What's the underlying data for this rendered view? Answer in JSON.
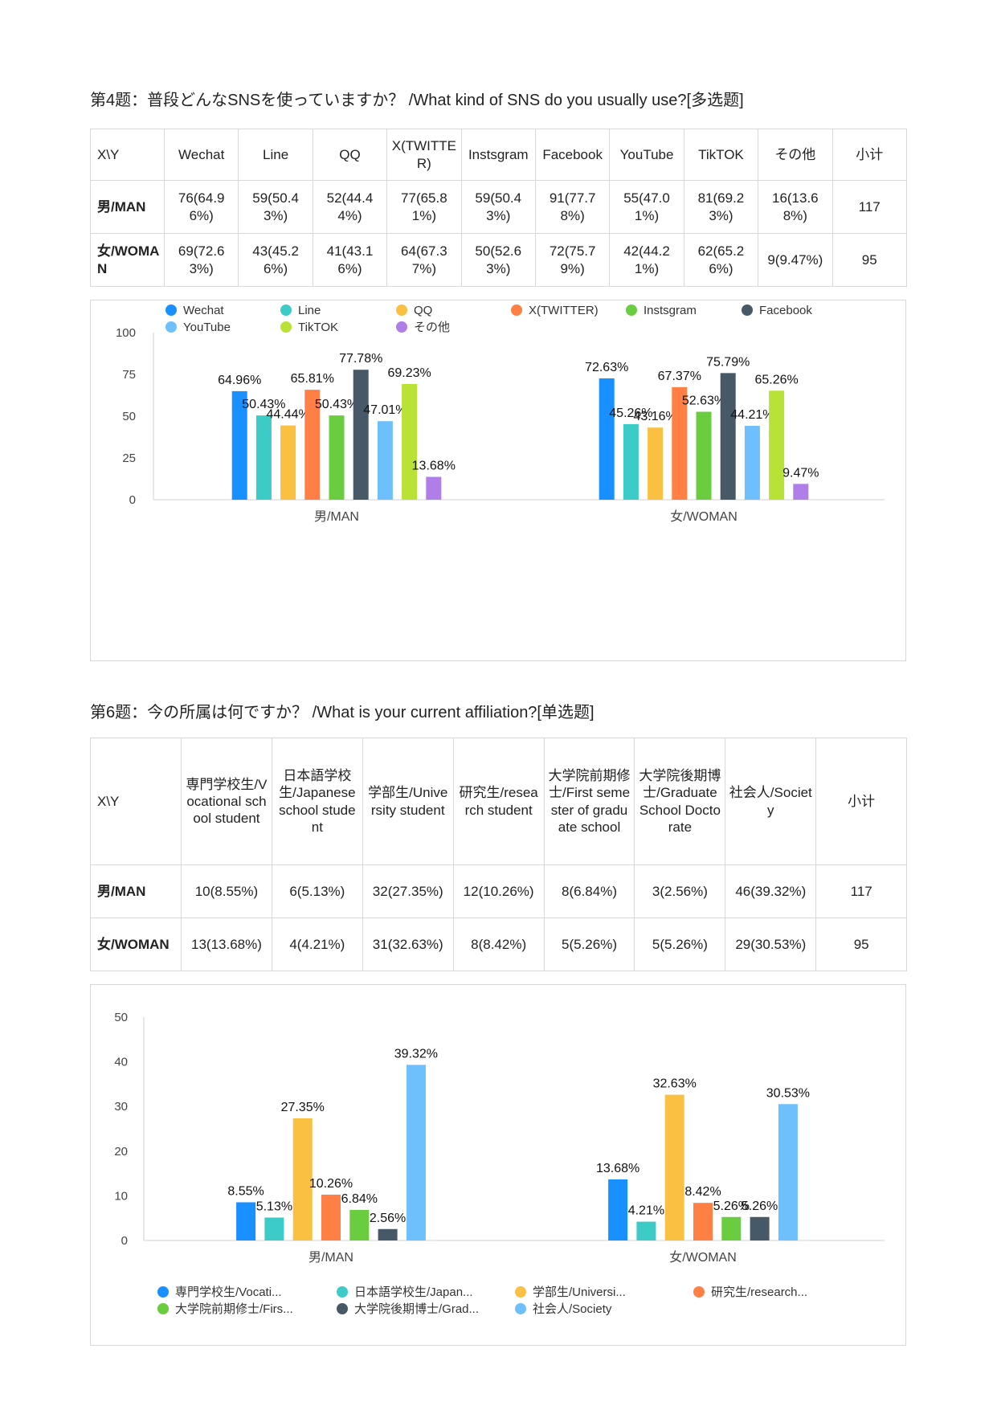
{
  "q1": {
    "title": "第4题：普段どんなSNSを使っていますか？ /What kind of SNS do you usually use?[多选题]",
    "table": {
      "corner": "X\\Y",
      "headers": [
        "Wechat",
        "Line",
        "QQ",
        "X(TWITTER)",
        "Instsgram",
        "Facebook",
        "YouTube",
        "TikTOK",
        "その他",
        "小计"
      ],
      "rows": [
        {
          "label": "男/MAN",
          "cells": [
            "76(64.96%)",
            "59(50.43%)",
            "52(44.44%)",
            "77(65.81%)",
            "59(50.43%)",
            "91(77.78%)",
            "55(47.01%)",
            "81(69.23%)",
            "16(13.68%)",
            "117"
          ]
        },
        {
          "label": "女/WOMAN",
          "cells": [
            "69(72.63%)",
            "43(45.26%)",
            "41(43.16%)",
            "64(67.37%)",
            "50(52.63%)",
            "72(75.79%)",
            "42(44.21%)",
            "62(65.26%)",
            "9(9.47%)",
            "95"
          ]
        }
      ]
    }
  },
  "q2": {
    "title": "第6题：今の所属は何ですか？ /What is your current affiliation?[单选题]",
    "table": {
      "corner": "X\\Y",
      "headers": [
        "専門学校生/Vocational school student",
        "日本語学校生/Japanese school student",
        "学部生/University student",
        "研究生/research student",
        "大学院前期修士/First semester of graduate school",
        "大学院後期博士/Graduate School Doctorate",
        "社会人/Society",
        "小计"
      ],
      "rows": [
        {
          "label": "男/MAN",
          "cells": [
            "10(8.55%)",
            "6(5.13%)",
            "32(27.35%)",
            "12(10.26%)",
            "8(6.84%)",
            "3(2.56%)",
            "46(39.32%)",
            "117"
          ]
        },
        {
          "label": "女/WOMAN",
          "cells": [
            "13(13.68%)",
            "4(4.21%)",
            "31(32.63%)",
            "8(8.42%)",
            "5(5.26%)",
            "5(5.26%)",
            "29(30.53%)",
            "95"
          ]
        }
      ]
    }
  },
  "chart_data": [
    {
      "type": "bar",
      "categories": [
        "男/MAN",
        "女/WOMAN"
      ],
      "ylim": [
        0,
        100
      ],
      "yticks": [
        0,
        25,
        50,
        75,
        100
      ],
      "legend_position": "bottom",
      "series": [
        {
          "name": "Wechat",
          "color": "#1890ff",
          "values": [
            64.96,
            72.63
          ],
          "labels": [
            "64.96%",
            "72.63%"
          ]
        },
        {
          "name": "Line",
          "color": "#3ccbc6",
          "values": [
            50.43,
            45.26
          ],
          "labels": [
            "50.43%",
            "45.26%"
          ]
        },
        {
          "name": "QQ",
          "color": "#fac042",
          "values": [
            44.44,
            43.16
          ],
          "labels": [
            "44.44%",
            "43.16%"
          ]
        },
        {
          "name": "X(TWITTER)",
          "color": "#ff7f45",
          "values": [
            65.81,
            67.37
          ],
          "labels": [
            "65.81%",
            "67.37%"
          ]
        },
        {
          "name": "Instsgram",
          "color": "#6acc3f",
          "values": [
            50.43,
            52.63
          ],
          "labels": [
            "50.43%",
            "52.63%"
          ]
        },
        {
          "name": "Facebook",
          "color": "#475866",
          "values": [
            77.78,
            75.79
          ],
          "labels": [
            "77.78%",
            "75.79%"
          ]
        },
        {
          "name": "YouTube",
          "color": "#6ec0fc",
          "values": [
            47.01,
            44.21
          ],
          "labels": [
            "47.01%",
            "44.21%"
          ]
        },
        {
          "name": "TikTOK",
          "color": "#b8e236",
          "values": [
            69.23,
            65.26
          ],
          "labels": [
            "69.23%",
            "65.26%"
          ]
        },
        {
          "name": "その他",
          "color": "#b07ee8",
          "values": [
            13.68,
            9.47
          ],
          "labels": [
            "13.68%",
            "9.47%"
          ]
        }
      ]
    },
    {
      "type": "bar",
      "categories": [
        "男/MAN",
        "女/WOMAN"
      ],
      "ylim": [
        0,
        50
      ],
      "yticks": [
        0,
        10,
        20,
        30,
        40,
        50
      ],
      "legend_position": "bottom",
      "series": [
        {
          "name": "専門学校生/Vocati...",
          "color": "#1890ff",
          "values": [
            8.55,
            13.68
          ],
          "labels": [
            "8.55%",
            "13.68%"
          ]
        },
        {
          "name": "日本語学校生/Japan...",
          "color": "#3ccbc6",
          "values": [
            5.13,
            4.21
          ],
          "labels": [
            "5.13%",
            "4.21%"
          ]
        },
        {
          "name": "学部生/Universi...",
          "color": "#fac042",
          "values": [
            27.35,
            32.63
          ],
          "labels": [
            "27.35%",
            "32.63%"
          ]
        },
        {
          "name": "研究生/research...",
          "color": "#ff7f45",
          "values": [
            10.26,
            8.42
          ],
          "labels": [
            "10.26%",
            "8.42%"
          ]
        },
        {
          "name": "大学院前期修士/Firs...",
          "color": "#6acc3f",
          "values": [
            6.84,
            5.26
          ],
          "labels": [
            "6.84%",
            "5.26%"
          ]
        },
        {
          "name": "大学院後期博士/Grad...",
          "color": "#475866",
          "values": [
            2.56,
            5.26
          ],
          "labels": [
            "2.56%",
            "5.26%"
          ]
        },
        {
          "name": "社会人/Society",
          "color": "#6ec0fc",
          "values": [
            39.32,
            30.53
          ],
          "labels": [
            "39.32%",
            "30.53%"
          ]
        }
      ]
    }
  ]
}
